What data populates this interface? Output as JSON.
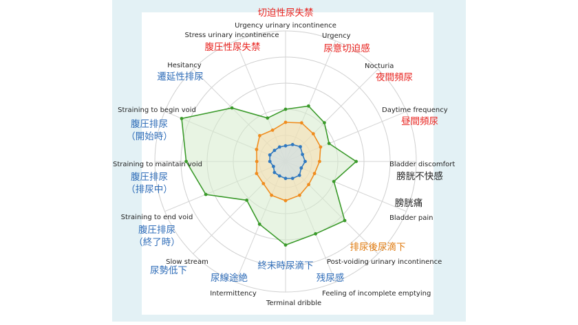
{
  "chart_data": {
    "type": "radar",
    "axes": [
      {
        "en": "Urgency urinary incontinence",
        "ja": "切迫性尿失禁",
        "ja_color": "#e8231f"
      },
      {
        "en": "Urgency",
        "ja": "尿意切迫感",
        "ja_color": "#e8231f"
      },
      {
        "en": "Nocturia",
        "ja": "夜間頻尿",
        "ja_color": "#e8231f"
      },
      {
        "en": "Daytime frequency",
        "ja": "昼間頻尿",
        "ja_color": "#e8231f"
      },
      {
        "en": "Bladder discomfort",
        "ja": "膀胱不快感",
        "ja_color": "#222222"
      },
      {
        "en": "Bladder pain",
        "ja": "膀胱痛",
        "ja_color": "#222222"
      },
      {
        "en": "Post-voiding urinary incontinence",
        "ja": "排尿後尿滴下",
        "ja_color": "#e07b10"
      },
      {
        "en": "Feeling of incomplete emptying",
        "ja": "残尿感",
        "ja_color": "#2e6cb8"
      },
      {
        "en": "Terminal dribble",
        "ja": "終末時尿滴下",
        "ja_color": "#2e6cb8"
      },
      {
        "en": "Intermittency",
        "ja": "尿線途絶",
        "ja_color": "#2e6cb8"
      },
      {
        "en": "Slow stream",
        "ja": "尿勢低下",
        "ja_color": "#2e6cb8"
      },
      {
        "en": "Straining to end void",
        "ja": "腹圧排尿\n（終了時）",
        "ja_color": "#2e6cb8"
      },
      {
        "en": "Straining to maintain void",
        "ja": "腹圧排尿\n（排尿中）",
        "ja_color": "#2e6cb8"
      },
      {
        "en": "Straining to begin void",
        "ja": "腹圧排尿\n（開始時）",
        "ja_color": "#2e6cb8"
      },
      {
        "en": "Hesitancy",
        "ja": "遷延性排尿",
        "ja_color": "#2e6cb8"
      },
      {
        "en": "Stress urinary incontinence",
        "ja": "腹圧性尿失禁",
        "ja_color": "#e8231f"
      }
    ],
    "rmax": 1.0,
    "rings": 5,
    "grid": true,
    "series": [
      {
        "color": "#3a9a2a",
        "fill": "#d6ebcc",
        "values": [
          0.4,
          0.46,
          0.42,
          0.36,
          0.54,
          0.4,
          0.64,
          0.6,
          0.64,
          0.52,
          0.42,
          0.66,
          0.76,
          0.86,
          0.58,
          0.36
        ]
      },
      {
        "color": "#f08c1e",
        "fill": "#f7dcae",
        "values": [
          0.3,
          0.32,
          0.3,
          0.29,
          0.26,
          0.24,
          0.25,
          0.28,
          0.3,
          0.28,
          0.24,
          0.24,
          0.22,
          0.24,
          0.28,
          0.26
        ]
      },
      {
        "color": "#2f78c0",
        "fill": "#c6dcec",
        "values": [
          0.12,
          0.14,
          0.16,
          0.14,
          0.15,
          0.13,
          0.15,
          0.14,
          0.13,
          0.12,
          0.12,
          0.1,
          0.12,
          0.13,
          0.12,
          0.12
        ]
      }
    ]
  }
}
